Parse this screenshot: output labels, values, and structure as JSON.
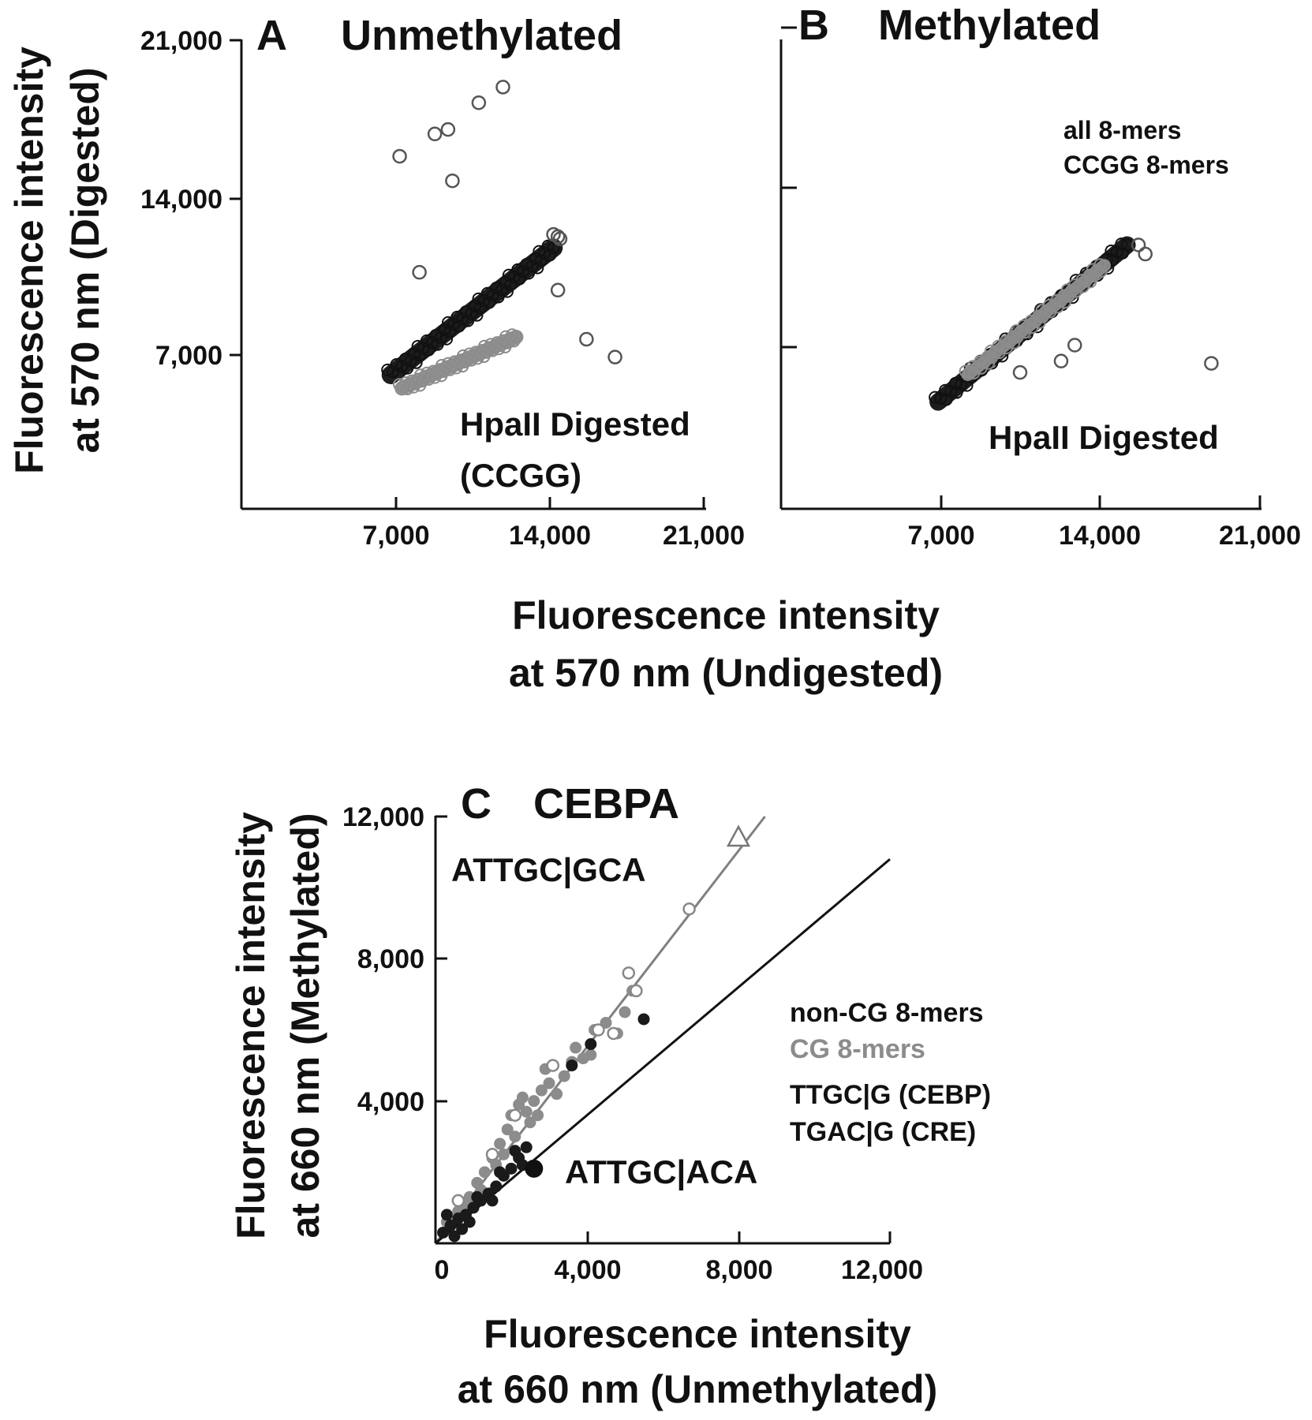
{
  "colors": {
    "black": "#111111",
    "gray": "#8c8c8c",
    "dark_point": "#1a1a1a"
  },
  "top_axes": {
    "y_title_line1": "Fluorescence intensity",
    "y_title_line2": "at 570 nm (Digested)",
    "x_title_line1": "Fluorescence intensity",
    "x_title_line2": "at 570 nm (Undigested)"
  },
  "bottom_axes": {
    "y_title_line1": "Fluorescence intensity",
    "y_title_line2": "at 660 nm (Methylated)",
    "x_title_line1": "Fluorescence intensity",
    "x_title_line2": "at 660 nm  (Unmethylated)"
  },
  "chart_data": [
    {
      "type": "scatter",
      "panel": "A",
      "title": "Unmethylated",
      "xlim": [
        0,
        21000
      ],
      "ylim": [
        0,
        21000
      ],
      "x_tick_labels": [
        "7,000",
        "14,000",
        "21,000"
      ],
      "y_tick_labels": [
        "7,000",
        "14,000",
        "21,000"
      ],
      "annotation_line1": "HpaII Digested",
      "annotation_line2": "(CCGG)",
      "series": [
        {
          "name": "all 8-mers",
          "color": "#111111",
          "band": {
            "x": [
              6800,
              14200
            ],
            "y": [
              6000,
              11700
            ],
            "width": 420
          }
        },
        {
          "name": "CCGG 8-mers",
          "color": "#8c8c8c",
          "band": {
            "x": [
              7300,
              12500
            ],
            "y": [
              5400,
              7700
            ],
            "width": 330
          }
        }
      ],
      "outliers": [
        {
          "x": 7200,
          "y": 15800
        },
        {
          "x": 8800,
          "y": 16800
        },
        {
          "x": 9400,
          "y": 17000
        },
        {
          "x": 10800,
          "y": 18200
        },
        {
          "x": 11900,
          "y": 18900
        },
        {
          "x": 9600,
          "y": 14700
        },
        {
          "x": 8100,
          "y": 10600
        },
        {
          "x": 14400,
          "y": 9800
        },
        {
          "x": 15700,
          "y": 7600
        },
        {
          "x": 17000,
          "y": 6800
        },
        {
          "x": 14200,
          "y": 12300
        },
        {
          "x": 14500,
          "y": 12100
        },
        {
          "x": 14400,
          "y": 12200
        }
      ]
    },
    {
      "type": "scatter",
      "panel": "B",
      "title": "Methylated",
      "xlim": [
        0,
        21000
      ],
      "ylim": [
        0,
        21000
      ],
      "x_tick_labels": [
        "7,000",
        "14,000",
        "21,000"
      ],
      "annotation": "HpaII Digested",
      "legend": [
        "all 8-mers",
        "CCGG 8-mers"
      ],
      "series": [
        {
          "name": "all 8-mers",
          "color": "#111111",
          "band": {
            "x": [
              6900,
              15200
            ],
            "y": [
              5800,
              12700
            ],
            "width": 380
          }
        },
        {
          "name": "CCGG 8-mers",
          "color": "#8c8c8c",
          "band": {
            "x": [
              8200,
              14200
            ],
            "y": [
              7000,
              11800
            ],
            "width": 280
          }
        }
      ],
      "outliers": [
        {
          "x": 15700,
          "y": 12700
        },
        {
          "x": 16000,
          "y": 12300
        },
        {
          "x": 12900,
          "y": 8300
        },
        {
          "x": 12300,
          "y": 7600
        },
        {
          "x": 18900,
          "y": 7500
        },
        {
          "x": 10500,
          "y": 7100
        }
      ]
    },
    {
      "type": "scatter",
      "panel": "C",
      "title": "CEBPA",
      "xlim": [
        0,
        12000
      ],
      "ylim": [
        0,
        12000
      ],
      "x_tick_labels": [
        "0",
        "4,000",
        "8,000",
        "12,000"
      ],
      "y_tick_labels": [
        "4,000",
        "8,000",
        "12,000"
      ],
      "annotation_top": "ATTGC|GCA",
      "annotation_bottom": "ATTGC|ACA",
      "legend": [
        {
          "label": "non-CG 8-mers",
          "color": "#111111"
        },
        {
          "label": "CG 8-mers",
          "color": "#8c8c8c"
        },
        {
          "label": "TTGC|G (CEBP)",
          "color": "#111111"
        },
        {
          "label": "TGAC|G (CRE)",
          "color": "#111111"
        }
      ],
      "lines": [
        {
          "name": "CG fit",
          "color": "#808080",
          "x": [
            0,
            8700
          ],
          "y": [
            0,
            12000
          ]
        },
        {
          "name": "non-CG fit",
          "color": "#111111",
          "x": [
            0,
            12000
          ],
          "y": [
            0,
            10800
          ]
        }
      ],
      "gray_points": [
        {
          "x": 300,
          "y": 600
        },
        {
          "x": 600,
          "y": 900
        },
        {
          "x": 900,
          "y": 1300
        },
        {
          "x": 1100,
          "y": 1700
        },
        {
          "x": 1300,
          "y": 2000
        },
        {
          "x": 1500,
          "y": 2400
        },
        {
          "x": 1700,
          "y": 2800
        },
        {
          "x": 1900,
          "y": 3200
        },
        {
          "x": 2000,
          "y": 3600
        },
        {
          "x": 2200,
          "y": 3900
        },
        {
          "x": 2400,
          "y": 3700
        },
        {
          "x": 2600,
          "y": 4000
        },
        {
          "x": 2800,
          "y": 4300
        },
        {
          "x": 3000,
          "y": 4500
        },
        {
          "x": 3200,
          "y": 4200
        },
        {
          "x": 2500,
          "y": 3400
        },
        {
          "x": 1800,
          "y": 2500
        },
        {
          "x": 1200,
          "y": 1500
        },
        {
          "x": 2100,
          "y": 3000
        },
        {
          "x": 2700,
          "y": 3600
        },
        {
          "x": 3400,
          "y": 4700
        },
        {
          "x": 3600,
          "y": 5100
        },
        {
          "x": 3900,
          "y": 5200
        },
        {
          "x": 4200,
          "y": 6000
        },
        {
          "x": 4500,
          "y": 6200
        },
        {
          "x": 5000,
          "y": 6500
        },
        {
          "x": 5200,
          "y": 7100
        },
        {
          "x": 4800,
          "y": 5900
        },
        {
          "x": 3700,
          "y": 5500
        },
        {
          "x": 2900,
          "y": 4900
        },
        {
          "x": 1600,
          "y": 2200
        },
        {
          "x": 800,
          "y": 1100
        },
        {
          "x": 2300,
          "y": 4100
        },
        {
          "x": 3100,
          "y": 5000
        },
        {
          "x": 4100,
          "y": 5300
        }
      ],
      "black_points": [
        {
          "x": 200,
          "y": 300
        },
        {
          "x": 400,
          "y": 500
        },
        {
          "x": 600,
          "y": 700
        },
        {
          "x": 800,
          "y": 800
        },
        {
          "x": 1000,
          "y": 1000
        },
        {
          "x": 1200,
          "y": 1200
        },
        {
          "x": 1400,
          "y": 1400
        },
        {
          "x": 1600,
          "y": 1600
        },
        {
          "x": 1800,
          "y": 1900
        },
        {
          "x": 2000,
          "y": 2100
        },
        {
          "x": 2200,
          "y": 2400
        },
        {
          "x": 2400,
          "y": 2700
        },
        {
          "x": 500,
          "y": 200
        },
        {
          "x": 700,
          "y": 400
        },
        {
          "x": 300,
          "y": 800
        },
        {
          "x": 900,
          "y": 600
        },
        {
          "x": 1100,
          "y": 1300
        },
        {
          "x": 1500,
          "y": 1200
        },
        {
          "x": 1700,
          "y": 2000
        },
        {
          "x": 2100,
          "y": 2600
        },
        {
          "x": 2300,
          "y": 2200
        },
        {
          "x": 3600,
          "y": 5000
        },
        {
          "x": 4100,
          "y": 5600
        },
        {
          "x": 5500,
          "y": 6300
        }
      ],
      "open_points": [
        {
          "x": 3100,
          "y": 5000
        },
        {
          "x": 4300,
          "y": 6000
        },
        {
          "x": 4700,
          "y": 5900
        },
        {
          "x": 5100,
          "y": 7600
        },
        {
          "x": 5300,
          "y": 7100
        },
        {
          "x": 6700,
          "y": 9400
        },
        {
          "x": 2100,
          "y": 3600
        },
        {
          "x": 1500,
          "y": 2500
        },
        {
          "x": 600,
          "y": 1200
        }
      ],
      "triangle_point": {
        "x": 8000,
        "y": 11400
      },
      "highlight_point": {
        "x": 2600,
        "y": 2100
      }
    }
  ]
}
